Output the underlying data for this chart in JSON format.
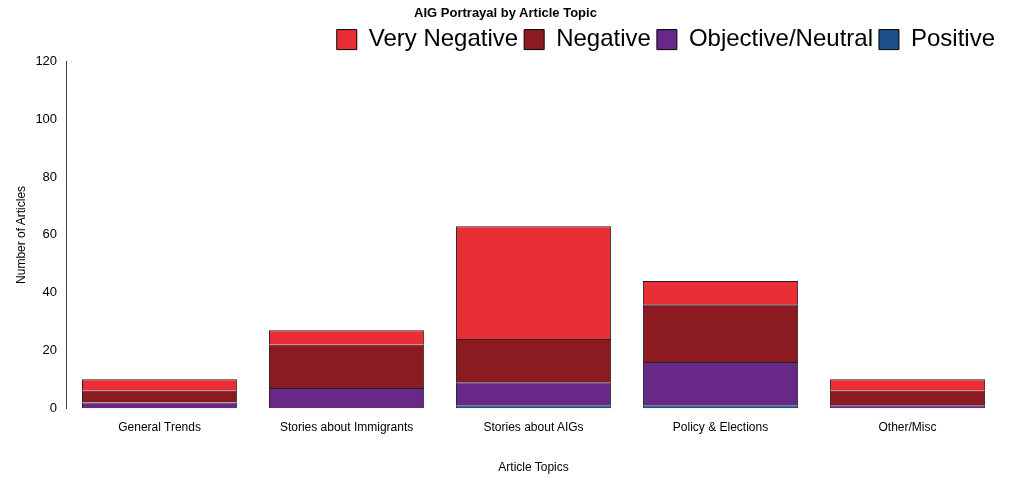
{
  "chart_data": {
    "type": "bar",
    "title": "AIG Portrayal by Article Topic",
    "xlabel": "Article Topics",
    "ylabel": "Number of Articles",
    "categories": [
      "General Trends",
      "Stories about Immigrants",
      "Stories about AIGs",
      "Policy & Elections",
      "Other/Misc"
    ],
    "stacked": true,
    "series": [
      {
        "name": "Positive",
        "color": "#1c4f8a",
        "values": [
          0,
          0,
          1,
          1,
          0
        ]
      },
      {
        "name": "Objective/Neutral",
        "color": "#672888",
        "values": [
          2,
          7,
          8,
          15,
          1
        ]
      },
      {
        "name": "Negative",
        "color": "#8b1b20",
        "values": [
          4,
          15,
          15,
          20,
          5
        ]
      },
      {
        "name": "Very Negative",
        "color": "#ea2e36",
        "values": [
          4,
          5,
          39,
          8,
          4
        ]
      }
    ],
    "ylim": [
      0,
      120
    ],
    "yticks": [
      0,
      20,
      40,
      60,
      80,
      100,
      120
    ],
    "grid": false,
    "legend": "top right"
  }
}
